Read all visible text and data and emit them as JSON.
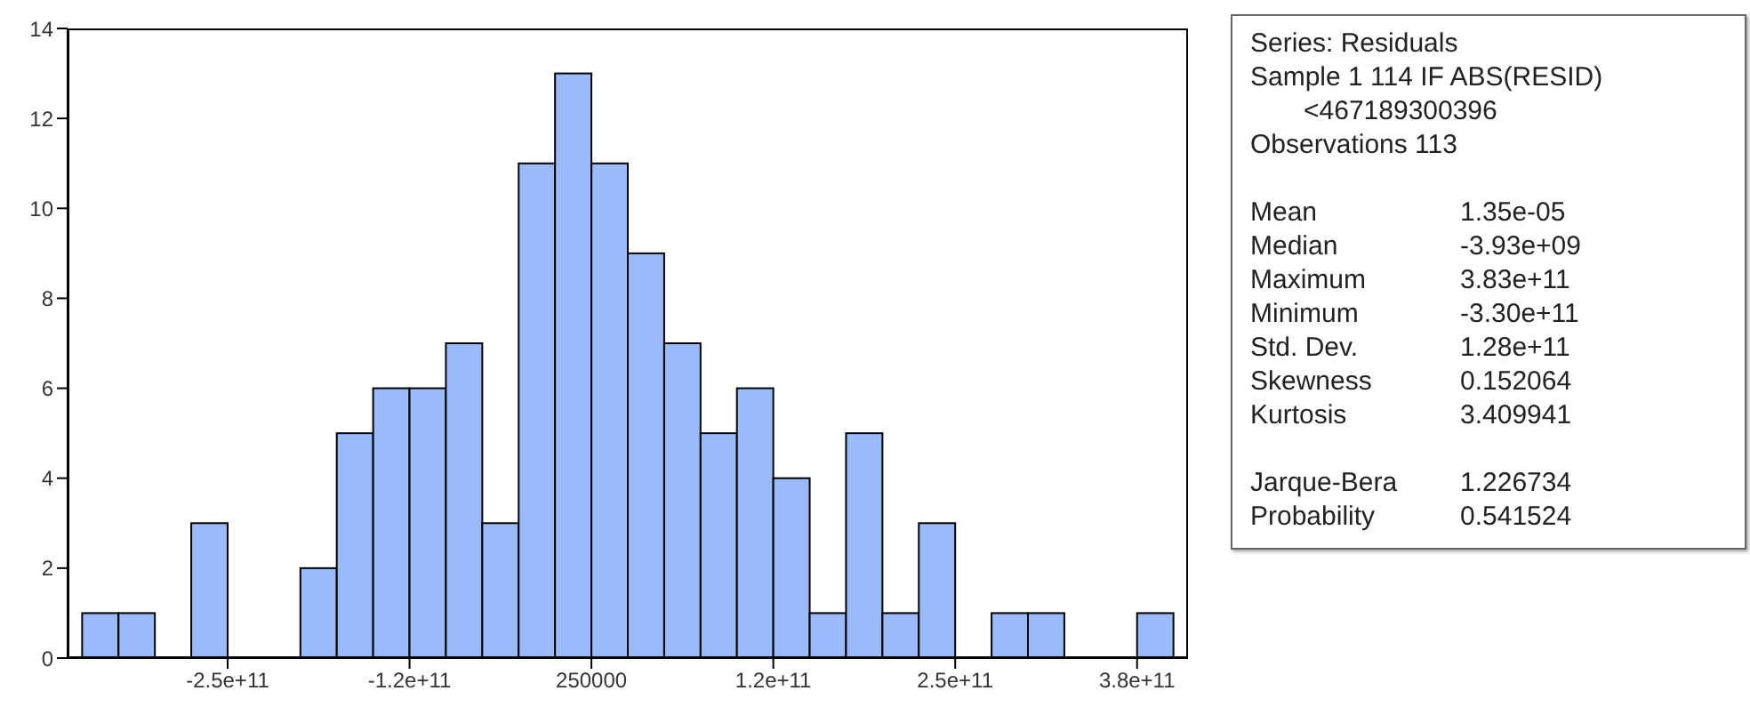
{
  "chart_data": {
    "type": "histogram",
    "bins": [
      -350000000000,
      -325000000000,
      -300000000000,
      -275000000000,
      -250000000000,
      -225000000000,
      -200000000000,
      -175000000000,
      -150000000000,
      -125000000000,
      -100000000000,
      -75000000000,
      -50000000000,
      -25000000000,
      0,
      25000000000,
      50000000000,
      75000000000,
      100000000000,
      125000000000,
      150000000000,
      175000000000,
      200000000000,
      225000000000,
      250000000000,
      275000000000,
      300000000000,
      325000000000,
      350000000000,
      375000000000,
      400000000000
    ],
    "values": [
      1,
      1,
      0,
      3,
      0,
      0,
      2,
      5,
      6,
      6,
      7,
      3,
      11,
      13,
      11,
      9,
      7,
      5,
      6,
      4,
      1,
      5,
      1,
      3,
      0,
      1,
      1,
      0,
      0,
      1
    ],
    "color": "#99bbfa",
    "xlim": [
      -360000000000,
      410000000000
    ],
    "xticks": [
      {
        "value": -250000000000,
        "label": "-2.5e+11"
      },
      {
        "value": -125000000000,
        "label": "-1.2e+11"
      },
      {
        "value": 250000,
        "label": "250000"
      },
      {
        "value": 125000000000,
        "label": "1.2e+11"
      },
      {
        "value": 250000000000,
        "label": "2.5e+11"
      },
      {
        "value": 375000000000,
        "label": "3.8e+11"
      }
    ],
    "ylim": [
      0,
      14
    ],
    "yticks": [
      0,
      2,
      4,
      6,
      8,
      10,
      12,
      14
    ],
    "grid": false,
    "annotations": [
      "Series: Residuals",
      "Sample 1 114 IF ABS(RESID) <467189300396",
      "Observations 113",
      "Mean\t1.35e-05",
      "Median\t-3.93e+09",
      "Maximum\t3.83e+11",
      "Minimum\t-3.30e+11",
      "Std. Dev.\t1.28e+11",
      "Skewness\t0.152064",
      "Kurtosis\t3.409941",
      "Jarque-Bera\t1.226734",
      "Probability\t0.541524"
    ]
  }
}
